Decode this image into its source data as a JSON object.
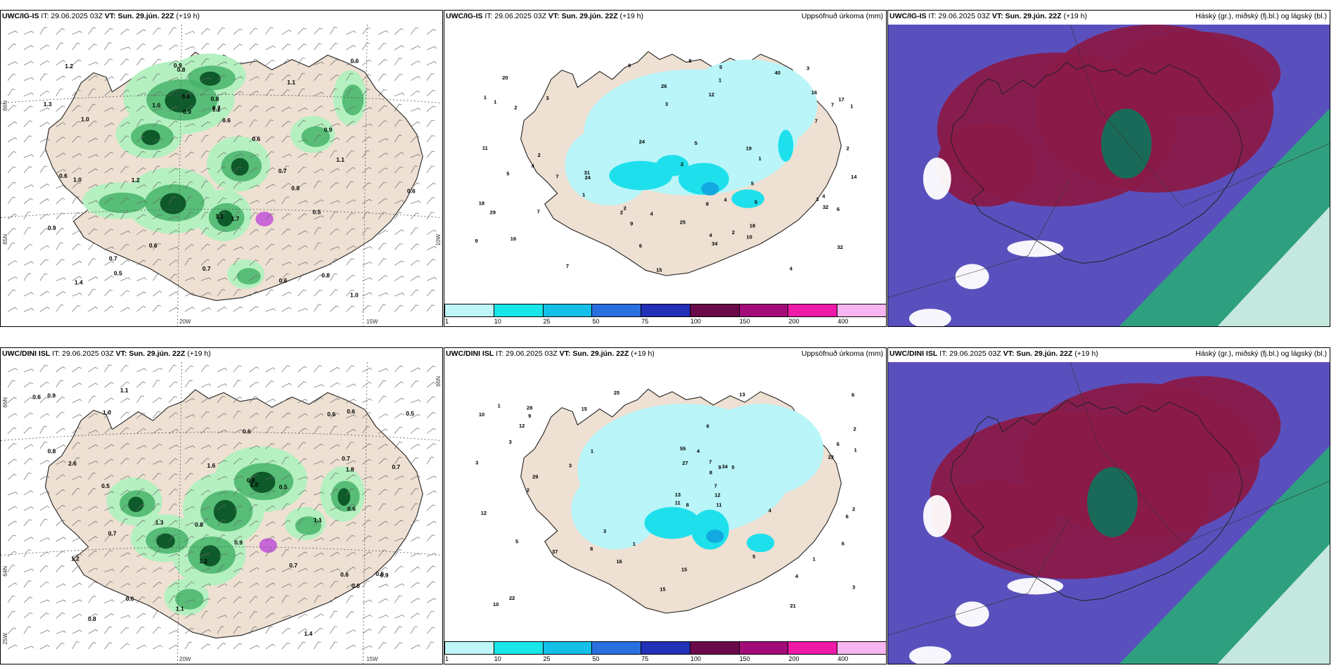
{
  "rows": [
    {
      "model": "UWC/IG-IS",
      "it": "IT: 29.06.2025 03Z",
      "vt_label": "VT:",
      "vt": "Sun. 29.jún. 22Z",
      "lead": "(+19 h)",
      "wind_values": [
        "1.0",
        "0.6",
        "0.7",
        "0.7",
        "0.9",
        "0.6",
        "0.5",
        "0.8",
        "0.6",
        "0.8",
        "0.7",
        "1.0",
        "0.9",
        "1.1",
        "0.6",
        "1.2",
        "1.3",
        "0.6",
        "1.0",
        "0.8",
        "0.9",
        "1.2",
        "1.4",
        "1.2",
        "0.7",
        "0.6",
        "1.0",
        "1.1",
        "0.8",
        "0.6",
        "0.9",
        "1.1",
        "1.7",
        "0.5",
        "0.6"
      ],
      "precip_values": [
        "3",
        "2",
        "1",
        "4",
        "5",
        "4",
        "3",
        "2",
        "4",
        "5",
        "3",
        "4",
        "7",
        "6",
        "5",
        "8",
        "16",
        "17",
        "9",
        "11",
        "7",
        "7",
        "18",
        "19",
        "25",
        "24",
        "32",
        "31",
        "20",
        "16",
        "15",
        "9",
        "12",
        "24",
        "34",
        "40",
        "26",
        "29",
        "32",
        "14",
        "18",
        "6",
        "7",
        "3",
        "5",
        "8",
        "7",
        "10",
        "6",
        "2",
        "2",
        "2",
        "1",
        "1",
        "1",
        "5",
        "2",
        "1",
        "1",
        "4",
        "4",
        "2"
      ]
    },
    {
      "model": "UWC/DINI ISL",
      "it": "IT: 29.06.2025 03Z",
      "vt_label": "VT:",
      "vt": "Sun. 29.jún. 22Z",
      "lead": "(+19 h)",
      "wind_values": [
        "0.6",
        "0.9",
        "0.8",
        "0.7",
        "0.6",
        "0.9",
        "0.8",
        "0.6",
        "0.6",
        "1.1",
        "1.0",
        "0.6",
        "1.1",
        "1.2",
        "1.4",
        "0.7",
        "1.0",
        "0.5",
        "1.1",
        "0.8",
        "0.6",
        "0.5",
        "1.3",
        "0.7",
        "0.8",
        "0.8",
        "0.9",
        "1.2",
        "0.5",
        "0.7",
        "0.6",
        "1.6",
        "0.6",
        "2.6",
        "1.8"
      ],
      "precip_values": [
        "3",
        "1",
        "2",
        "3",
        "4",
        "3",
        "5",
        "10",
        "11",
        "6",
        "9",
        "7",
        "6",
        "15",
        "13",
        "25",
        "16",
        "22",
        "27",
        "28",
        "29",
        "21",
        "12",
        "37",
        "55",
        "34",
        "4",
        "12",
        "10",
        "8",
        "6",
        "5",
        "9",
        "7",
        "4",
        "2",
        "1",
        "1",
        "1",
        "1",
        "2",
        "3",
        "11",
        "6",
        "8",
        "5",
        "12",
        "15",
        "22",
        "13",
        "3",
        "8",
        "6",
        "15"
      ]
    }
  ],
  "axes": {
    "lat_66": "66N",
    "lat_65": "65N",
    "lat_64": "64N",
    "lon_25": "25W",
    "lon_20": "20W",
    "lon_15": "15W",
    "lon_10": "10W"
  },
  "precip_title": "Uppsöfnuð úrkoma (mm)",
  "cloud_title": "Háský (gr.), miðský (fj.bl.) og lágský (bl.)",
  "colorbar": {
    "labels": [
      "1",
      "10",
      "25",
      "50",
      "75",
      "100",
      "150",
      "200",
      "400"
    ],
    "colors": [
      "#bff6f8",
      "#18e6e8",
      "#14c0e8",
      "#2a6fe0",
      "#2330b8",
      "#6b0a4a",
      "#a20b78",
      "#ef1aa8",
      "#f7b6ef"
    ]
  },
  "colors": {
    "land": "#eee0d2",
    "sea": "#ffffff",
    "wind_light": "#b5f0c0",
    "wind_mid": "#46b46a",
    "wind_dark": "#0e5a2a",
    "wind_purple": "#c867d8",
    "precip_light": "#b9f5f9",
    "precip_mid": "#1ee0ec",
    "precip_dark": "#12a8e0",
    "cloud_high": "#5a50bd",
    "cloud_mid": "#8a1a48",
    "cloud_low": "#2aa878",
    "cloud_low_dark": "#1a6a5a"
  }
}
